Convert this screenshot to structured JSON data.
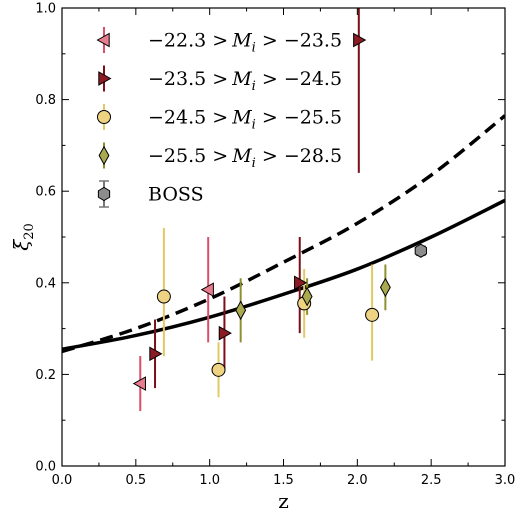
{
  "chart_data": {
    "type": "scatter",
    "xlabel": "z",
    "ylabel": "ξ",
    "ylabel_sub": "20",
    "xlim": [
      0.0,
      3.0
    ],
    "ylim": [
      0.0,
      1.0
    ],
    "xticks": [
      "0.0",
      "0.5",
      "1.0",
      "1.5",
      "2.0",
      "2.5",
      "3.0"
    ],
    "yticks": [
      "0.0",
      "0.2",
      "0.4",
      "0.6",
      "0.8",
      "1.0"
    ],
    "legend_position": "top-left",
    "series": [
      {
        "name": "−22.3 > M_i > −23.5",
        "legend_parts": [
          "−22.3 >",
          "M",
          "i",
          " > −23.5"
        ],
        "marker": "triangle-left",
        "color": "#e67c8e",
        "errcolor": "#d94f6a",
        "points": [
          {
            "x": 0.53,
            "y": 0.18,
            "lo": 0.12,
            "hi": 0.24
          },
          {
            "x": 0.99,
            "y": 0.385,
            "lo": 0.27,
            "hi": 0.5
          }
        ]
      },
      {
        "name": "−23.5 > M_i > −24.5",
        "legend_parts": [
          "−23.5 >",
          "M",
          "i",
          " > −24.5"
        ],
        "marker": "triangle-right",
        "color": "#8b1c24",
        "errcolor": "#7a0f18",
        "points": [
          {
            "x": 0.63,
            "y": 0.245,
            "lo": 0.17,
            "hi": 0.32
          },
          {
            "x": 1.1,
            "y": 0.29,
            "lo": 0.21,
            "hi": 0.37
          },
          {
            "x": 1.61,
            "y": 0.4,
            "lo": 0.29,
            "hi": 0.5
          },
          {
            "x": 2.01,
            "y": 0.93,
            "lo": 0.64,
            "hi": 1.1
          }
        ]
      },
      {
        "name": "−24.5 > M_i > −25.5",
        "legend_parts": [
          "−24.5 >",
          "M",
          "i",
          " > −25.5"
        ],
        "marker": "circle",
        "color": "#edd382",
        "errcolor": "#e2c965",
        "points": [
          {
            "x": 0.69,
            "y": 0.37,
            "lo": 0.24,
            "hi": 0.52
          },
          {
            "x": 1.06,
            "y": 0.21,
            "lo": 0.15,
            "hi": 0.27
          },
          {
            "x": 1.64,
            "y": 0.355,
            "lo": 0.28,
            "hi": 0.43
          },
          {
            "x": 2.1,
            "y": 0.33,
            "lo": 0.23,
            "hi": 0.44
          }
        ]
      },
      {
        "name": "−25.5 > M_i > −28.5",
        "legend_parts": [
          "−25.5 >",
          "M",
          "i",
          " > −28.5"
        ],
        "marker": "diamond",
        "color": "#a9a94e",
        "errcolor": "#8f8f30",
        "points": [
          {
            "x": 1.21,
            "y": 0.34,
            "lo": 0.27,
            "hi": 0.41
          },
          {
            "x": 1.66,
            "y": 0.37,
            "lo": 0.33,
            "hi": 0.41
          },
          {
            "x": 2.19,
            "y": 0.39,
            "lo": 0.34,
            "hi": 0.44
          }
        ]
      },
      {
        "name": "BOSS",
        "legend_parts": [
          "BOSS"
        ],
        "marker": "hexagon",
        "color": "#8c8c8c",
        "errcolor": "#777777",
        "points": [
          {
            "x": 2.43,
            "y": 0.47,
            "lo": 0.46,
            "hi": 0.48
          }
        ]
      }
    ],
    "curves": [
      {
        "style": "solid",
        "points": [
          [
            0.0,
            0.255
          ],
          [
            0.5,
            0.285
          ],
          [
            1.0,
            0.325
          ],
          [
            1.5,
            0.375
          ],
          [
            2.0,
            0.43
          ],
          [
            2.5,
            0.5
          ],
          [
            3.0,
            0.58
          ]
        ]
      },
      {
        "style": "dashed",
        "points": [
          [
            0.0,
            0.25
          ],
          [
            0.5,
            0.3
          ],
          [
            1.0,
            0.365
          ],
          [
            1.5,
            0.445
          ],
          [
            2.0,
            0.53
          ],
          [
            2.5,
            0.635
          ],
          [
            3.0,
            0.765
          ]
        ]
      }
    ]
  }
}
